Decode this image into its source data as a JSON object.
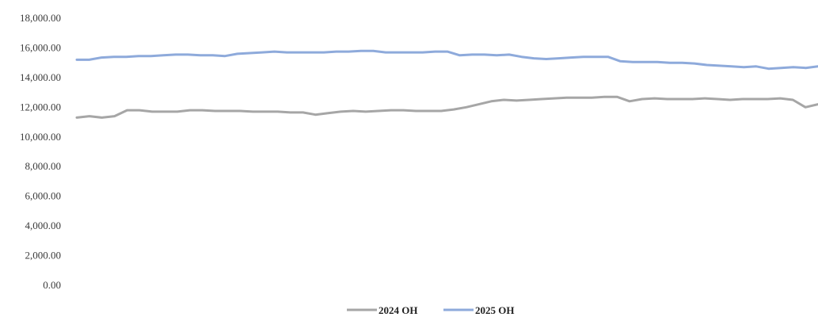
{
  "chart_data": {
    "type": "line",
    "title": "",
    "xlabel": "",
    "ylabel": "",
    "ylim": [
      0,
      18000
    ],
    "yticks": [
      0,
      2000,
      4000,
      6000,
      8000,
      10000,
      12000,
      14000,
      16000,
      18000
    ],
    "ytick_labels": [
      "0.00",
      "2,000.00",
      "4,000.00",
      "6,000.00",
      "8,000.00",
      "10,000.00",
      "12,000.00",
      "14,000.00",
      "16,000.00",
      "18,000.00"
    ],
    "x_tick_labels_visible": false,
    "grid": false,
    "legend_position": "bottom-center",
    "series": [
      {
        "name": "2024 OH",
        "color": "#a6a6a6",
        "values": [
          11300,
          11400,
          11300,
          11400,
          11800,
          11800,
          11700,
          11700,
          11700,
          11800,
          11800,
          11750,
          11750,
          11750,
          11700,
          11700,
          11700,
          11650,
          11650,
          11500,
          11600,
          11700,
          11750,
          11700,
          11750,
          11800,
          11800,
          11750,
          11750,
          11750,
          11850,
          12000,
          12200,
          12400,
          12500,
          12450,
          12500,
          12550,
          12600,
          12650,
          12650,
          12650,
          12700,
          12700,
          12400,
          12550,
          12600,
          12550,
          12550,
          12550,
          12600,
          12550,
          12500,
          12550,
          12550,
          12550,
          12600,
          12500,
          12000,
          12200
        ]
      },
      {
        "name": "2025 OH",
        "color": "#8eaadb",
        "values": [
          15200,
          15200,
          15350,
          15400,
          15400,
          15450,
          15450,
          15500,
          15550,
          15550,
          15500,
          15500,
          15450,
          15600,
          15650,
          15700,
          15750,
          15700,
          15700,
          15700,
          15700,
          15750,
          15750,
          15800,
          15800,
          15700,
          15700,
          15700,
          15700,
          15750,
          15750,
          15500,
          15550,
          15550,
          15500,
          15550,
          15400,
          15300,
          15250,
          15300,
          15350,
          15400,
          15400,
          15400,
          15100,
          15050,
          15050,
          15050,
          15000,
          15000,
          14950,
          14850,
          14800,
          14750,
          14700,
          14750,
          14600,
          14650,
          14700,
          14650,
          14750
        ]
      }
    ]
  }
}
